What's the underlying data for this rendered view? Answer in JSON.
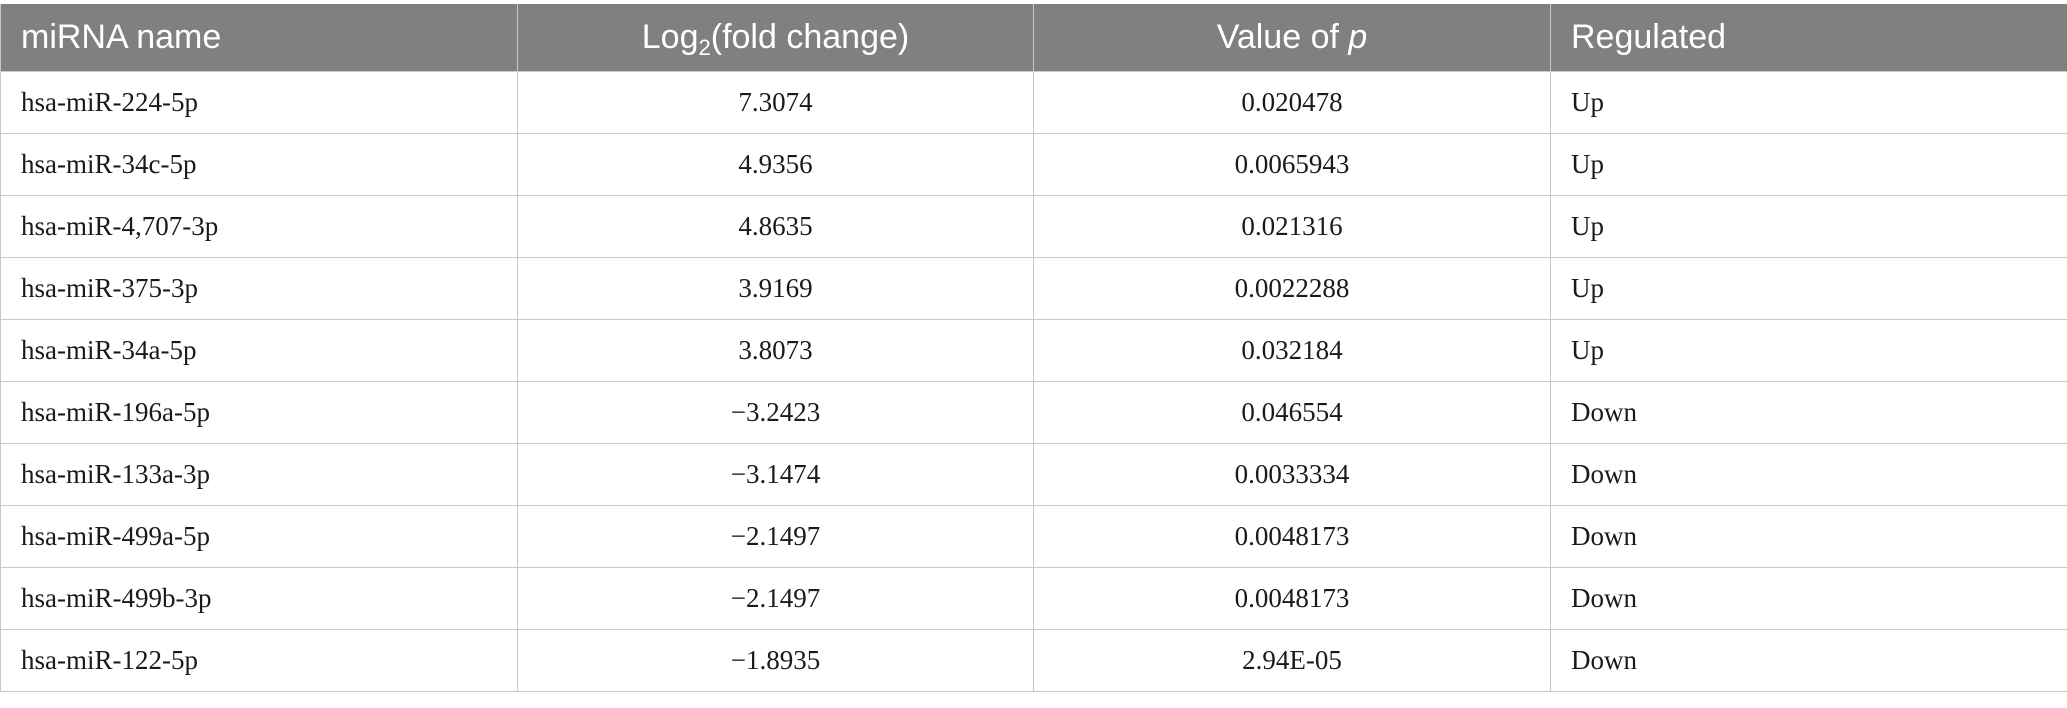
{
  "table": {
    "headers": {
      "mirna": "miRNA name",
      "log_prefix": "Log",
      "log_sub": "2",
      "log_suffix": "(fold change)",
      "p_prefix": "Value of ",
      "p_ital": "p",
      "regulated": "Regulated"
    },
    "rows": [
      {
        "name": "hsa-miR-224-5p",
        "log2fc": "7.3074",
        "p": "0.020478",
        "regulated": "Up"
      },
      {
        "name": "hsa-miR-34c-5p",
        "log2fc": "4.9356",
        "p": "0.0065943",
        "regulated": "Up"
      },
      {
        "name": "hsa-miR-4,707-3p",
        "log2fc": "4.8635",
        "p": "0.021316",
        "regulated": "Up"
      },
      {
        "name": "hsa-miR-375-3p",
        "log2fc": "3.9169",
        "p": "0.0022288",
        "regulated": "Up"
      },
      {
        "name": "hsa-miR-34a-5p",
        "log2fc": "3.8073",
        "p": "0.032184",
        "regulated": "Up"
      },
      {
        "name": "hsa-miR-196a-5p",
        "log2fc": "−3.2423",
        "p": "0.046554",
        "regulated": "Down"
      },
      {
        "name": "hsa-miR-133a-3p",
        "log2fc": "−3.1474",
        "p": "0.0033334",
        "regulated": "Down"
      },
      {
        "name": "hsa-miR-499a-5p",
        "log2fc": "−2.1497",
        "p": "0.0048173",
        "regulated": "Down"
      },
      {
        "name": "hsa-miR-499b-3p",
        "log2fc": "−2.1497",
        "p": "0.0048173",
        "regulated": "Down"
      },
      {
        "name": "hsa-miR-122-5p",
        "log2fc": "−1.8935",
        "p": "2.94E-05",
        "regulated": "Down"
      }
    ]
  },
  "colors": {
    "header_bg": "#808080",
    "header_text": "#ffffff",
    "grid": "#c8c8c8"
  }
}
